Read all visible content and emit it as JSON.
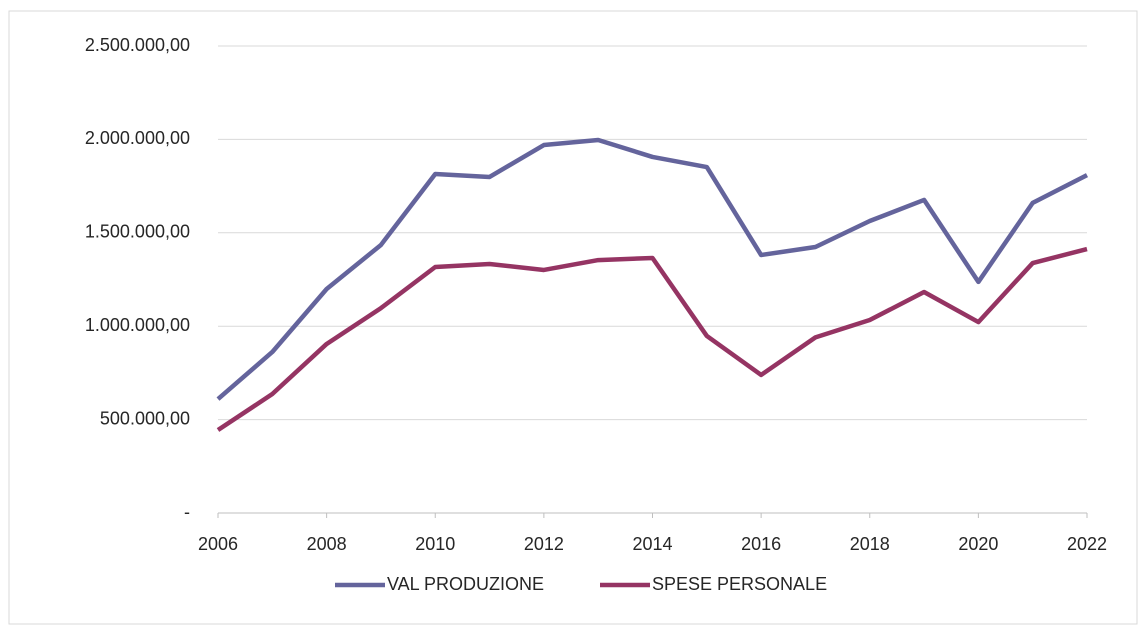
{
  "chart_data": {
    "type": "line",
    "x": [
      2006,
      2007,
      2008,
      2009,
      2010,
      2011,
      2012,
      2013,
      2014,
      2015,
      2016,
      2017,
      2018,
      2019,
      2020,
      2021,
      2022
    ],
    "series": [
      {
        "name": "VAL PRODUZIONE",
        "color": "#64649c",
        "values": [
          610000,
          862000,
          1199000,
          1435000,
          1815000,
          1799000,
          1970000,
          1997000,
          1906000,
          1852000,
          1381000,
          1424000,
          1563000,
          1676000,
          1237000,
          1660000,
          1809000
        ]
      },
      {
        "name": "SPESE PERSONALE",
        "color": "#953463",
        "values": [
          444000,
          637000,
          905000,
          1097000,
          1317000,
          1333000,
          1301000,
          1354000,
          1365000,
          948000,
          739000,
          940000,
          1033000,
          1183000,
          1022000,
          1338000,
          1413000
        ]
      }
    ],
    "xlim": [
      2006,
      2022
    ],
    "xticks": [
      2006,
      2008,
      2010,
      2012,
      2014,
      2016,
      2018,
      2020,
      2022
    ],
    "ylim": [
      0,
      2500000
    ],
    "yticks": [
      {
        "value": 0,
        "label": "-"
      },
      {
        "value": 500000,
        "label": "500.000,00"
      },
      {
        "value": 1000000,
        "label": "1.000.000,00"
      },
      {
        "value": 1500000,
        "label": "1.500.000,00"
      },
      {
        "value": 2000000,
        "label": "2.000.000,00"
      },
      {
        "value": 2500000,
        "label": "2.500.000,00"
      }
    ],
    "grid": true,
    "legend": "bottom"
  }
}
